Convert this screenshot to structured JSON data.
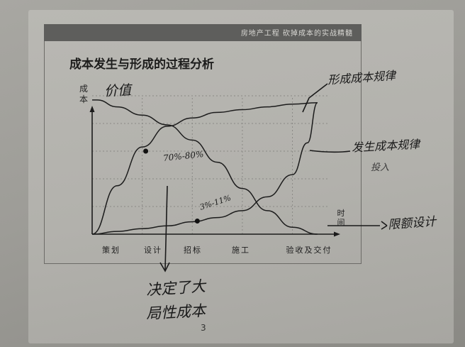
{
  "header": {
    "text": "房地产工程   砍掉成本的实战精髓"
  },
  "slide": {
    "title": "成本发生与形成的过程分析"
  },
  "chart_data": {
    "type": "line",
    "ylabel": "成本",
    "xlabel": "时间",
    "categories": [
      "策划",
      "设计",
      "招标",
      "施工",
      "验收及交付"
    ],
    "series": [
      {
        "name": "价值",
        "x": [
          0,
          0.1,
          0.5,
          1,
          1.5,
          2,
          2.5,
          3,
          3.5,
          4,
          4.5
        ],
        "values": [
          97,
          97,
          92,
          86,
          79,
          68,
          52,
          33,
          17,
          5,
          0
        ]
      },
      {
        "name": "形成成本规律",
        "x": [
          0,
          0.5,
          1,
          1.5,
          2,
          2.5,
          3,
          3.5,
          4,
          4.5
        ],
        "values": [
          0,
          35,
          63,
          78,
          84,
          88,
          90,
          92,
          94,
          95
        ]
      },
      {
        "name": "发生成本规律",
        "x": [
          0,
          0.5,
          1,
          1.5,
          2,
          2.5,
          3,
          3.5,
          4,
          4.3,
          4.5
        ],
        "values": [
          0,
          2,
          4,
          6,
          9,
          12,
          17,
          27,
          43,
          66,
          95
        ]
      }
    ],
    "markers": [
      {
        "x": 1.07,
        "y": 60,
        "label": "70%-80%"
      },
      {
        "x": 2.1,
        "y": 9.5,
        "label": "3%-11%"
      }
    ],
    "xlim": [
      0,
      4.7
    ],
    "ylim": [
      0,
      100
    ],
    "grid": true
  },
  "annotations": {
    "value": "价值",
    "formation": "形成成本规律",
    "occurrence": "发生成本规律",
    "investment": "投入",
    "pct_high": "70%-80%",
    "pct_low": "3%-11%",
    "design": "限额设计",
    "decide_line1": "决定了大",
    "decide_line2": "局性成本"
  },
  "page_number": "3"
}
